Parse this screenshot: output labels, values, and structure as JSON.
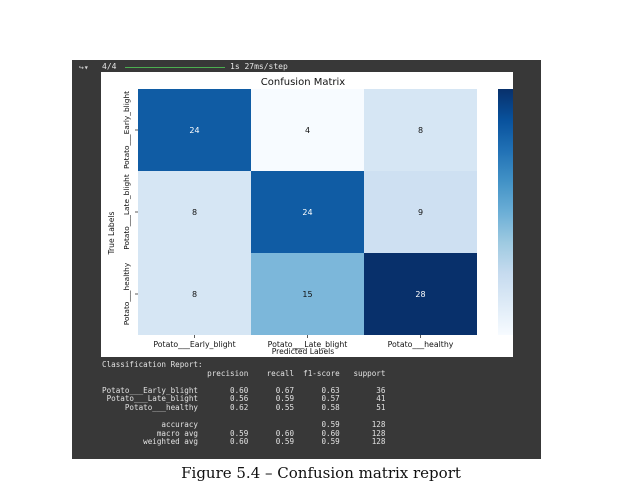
{
  "progress": {
    "steps": "4/4",
    "timing": "1s 27ms/step"
  },
  "chart_data": {
    "type": "heatmap",
    "title": "Confusion Matrix",
    "xlabel": "Predicted Labels",
    "ylabel": "True Labels",
    "x_categories": [
      "Potato___Early_blight",
      "Potato___Late_blight",
      "Potato___healthy"
    ],
    "y_categories": [
      "Potato___Early_blight",
      "Potato___Late_blight",
      "Potato___healthy"
    ],
    "values": [
      [
        24,
        4,
        8
      ],
      [
        8,
        24,
        9
      ],
      [
        8,
        15,
        28
      ]
    ],
    "colormap": "Blues",
    "colorbar": {
      "ticks": [
        5,
        10,
        15,
        20,
        25
      ],
      "range": [
        4,
        28
      ]
    }
  },
  "report": {
    "heading": "Classification Report:",
    "header": "                       precision    recall  f1-score   support",
    "rows": [
      "Potato___Early_blight       0.60      0.67      0.63        36",
      " Potato___Late_blight       0.56      0.59      0.57        41",
      "     Potato___healthy       0.62      0.55      0.58        51",
      "",
      "             accuracy                           0.59       128",
      "            macro avg       0.59      0.60      0.60       128",
      "         weighted avg       0.60      0.59      0.59       128"
    ]
  },
  "caption": "Figure 5.4 – Confusion matrix report"
}
